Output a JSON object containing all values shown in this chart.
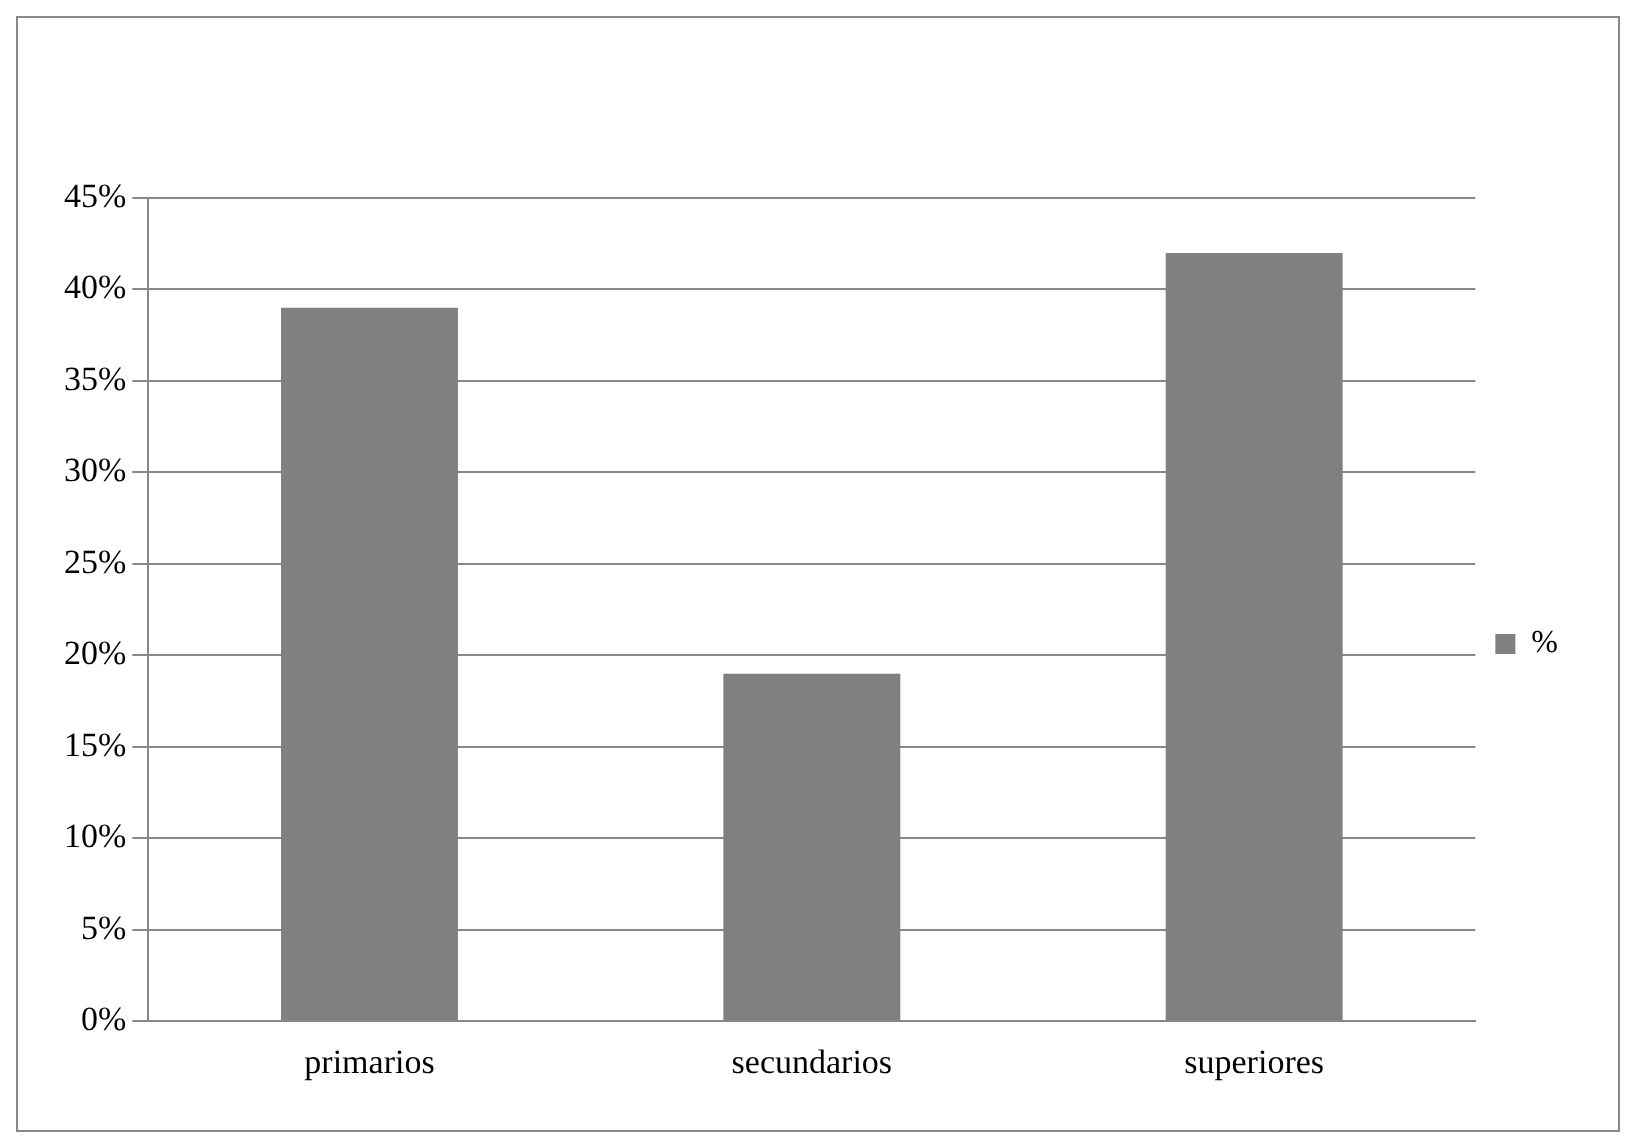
{
  "chart_data": {
    "type": "bar",
    "categories": [
      "primarios",
      "secundarios",
      "superiores"
    ],
    "series": [
      {
        "name": "%",
        "color": "#808080",
        "values": [
          39,
          19,
          42
        ]
      }
    ],
    "ylim": [
      0,
      45
    ],
    "yticks": [
      {
        "value": 0,
        "label": "0%"
      },
      {
        "value": 5,
        "label": "5%"
      },
      {
        "value": 10,
        "label": "10%"
      },
      {
        "value": 15,
        "label": "15%"
      },
      {
        "value": 20,
        "label": "20%"
      },
      {
        "value": 25,
        "label": "25%"
      },
      {
        "value": 30,
        "label": "30%"
      },
      {
        "value": 35,
        "label": "35%"
      },
      {
        "value": 40,
        "label": "40%"
      },
      {
        "value": 45,
        "label": "45%"
      }
    ],
    "grid": "y",
    "legend": "right"
  }
}
